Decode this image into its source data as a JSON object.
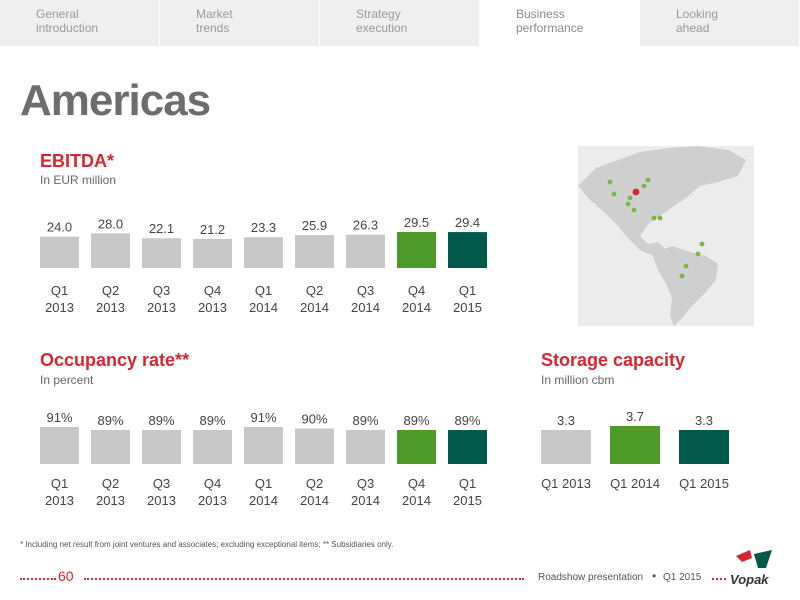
{
  "nav": {
    "tabs": [
      {
        "line1": "General",
        "line2": "introduction"
      },
      {
        "line1": "Market",
        "line2": "trends"
      },
      {
        "line1": "Strategy",
        "line2": "execution"
      },
      {
        "line1": "Business",
        "line2": "performance"
      },
      {
        "line1": "Looking",
        "line2": "ahead"
      }
    ],
    "active_index": 3
  },
  "page_title": "Americas",
  "colors": {
    "accent_red": "#d7262e",
    "bar_grey": "#c8c8c8",
    "bar_green": "#4e9a28",
    "bar_dark_green": "#00594a"
  },
  "chart_data": [
    {
      "type": "bar",
      "title": "EBITDA*",
      "subtitle": "In EUR million",
      "categories": [
        "Q1 2013",
        "Q2 2013",
        "Q3 2013",
        "Q4 2013",
        "Q1 2014",
        "Q2 2014",
        "Q3 2014",
        "Q4 2014",
        "Q1 2015"
      ],
      "category_lines": [
        [
          "Q1",
          "2013"
        ],
        [
          "Q2",
          "2013"
        ],
        [
          "Q3",
          "2013"
        ],
        [
          "Q4",
          "2013"
        ],
        [
          "Q1",
          "2014"
        ],
        [
          "Q2",
          "2014"
        ],
        [
          "Q3",
          "2014"
        ],
        [
          "Q4",
          "2014"
        ],
        [
          "Q1",
          "2015"
        ]
      ],
      "values": [
        24.0,
        28.0,
        22.1,
        21.2,
        23.3,
        25.9,
        26.3,
        29.5,
        29.4
      ],
      "value_labels": [
        "24.0",
        "28.0",
        "22.1",
        "21.2",
        "23.3",
        "25.9",
        "26.3",
        "29.5",
        "29.4"
      ],
      "bar_colors": [
        "#c8c8c8",
        "#c8c8c8",
        "#c8c8c8",
        "#c8c8c8",
        "#c8c8c8",
        "#c8c8c8",
        "#c8c8c8",
        "#4e9a28",
        "#00594a"
      ],
      "xlabel": "",
      "ylabel": "",
      "grid": false,
      "legend": "none"
    },
    {
      "type": "bar",
      "title": "Occupancy rate**",
      "subtitle": "In percent",
      "categories": [
        "Q1 2013",
        "Q2 2013",
        "Q3 2013",
        "Q4 2013",
        "Q1 2014",
        "Q2 2014",
        "Q3 2014",
        "Q4 2014",
        "Q1 2015"
      ],
      "category_lines": [
        [
          "Q1",
          "2013"
        ],
        [
          "Q2",
          "2013"
        ],
        [
          "Q3",
          "2013"
        ],
        [
          "Q4",
          "2013"
        ],
        [
          "Q1",
          "2014"
        ],
        [
          "Q2",
          "2014"
        ],
        [
          "Q3",
          "2014"
        ],
        [
          "Q4",
          "2014"
        ],
        [
          "Q1",
          "2015"
        ]
      ],
      "values": [
        91,
        89,
        89,
        89,
        91,
        90,
        89,
        89,
        89
      ],
      "value_labels": [
        "91%",
        "89%",
        "89%",
        "89%",
        "91%",
        "90%",
        "89%",
        "89%",
        "89%"
      ],
      "bar_colors": [
        "#c8c8c8",
        "#c8c8c8",
        "#c8c8c8",
        "#c8c8c8",
        "#c8c8c8",
        "#c8c8c8",
        "#c8c8c8",
        "#4e9a28",
        "#00594a"
      ],
      "xlabel": "",
      "ylabel": "",
      "grid": false,
      "legend": "none"
    },
    {
      "type": "bar",
      "title": "Storage capacity",
      "subtitle": "In million cbm",
      "categories": [
        "Q1 2013",
        "Q1 2014",
        "Q1 2015"
      ],
      "category_lines": [
        [
          "Q1 2013"
        ],
        [
          "Q1 2014"
        ],
        [
          "Q1 2015"
        ]
      ],
      "values": [
        3.3,
        3.7,
        3.3
      ],
      "value_labels": [
        "3.3",
        "3.7",
        "3.3"
      ],
      "bar_colors": [
        "#c8c8c8",
        "#4e9a28",
        "#00594a"
      ],
      "xlabel": "",
      "ylabel": "",
      "grid": false,
      "legend": "none"
    }
  ],
  "map": {
    "region": "Americas",
    "land_color": "#cfcfcf",
    "sea_color": "#ececec",
    "terminal_color": "#7ab648",
    "hq_color": "#d7262e"
  },
  "footnote": "* Including net result from joint ventures and associates; excluding exceptional items; ** Subsidiaries only.",
  "footer": {
    "page_number": "60",
    "presentation": "Roadshow presentation",
    "separator": "•",
    "date": "Q1 2015",
    "logo_text": "Vopak"
  }
}
